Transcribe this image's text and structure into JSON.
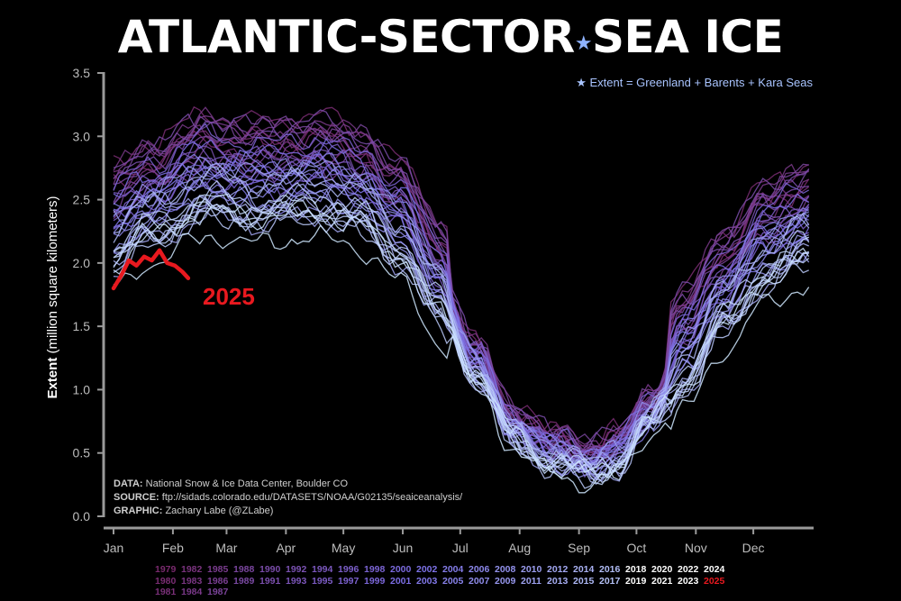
{
  "title": {
    "main_a": "ATLANTIC-SECTOR",
    "star": "★",
    "main_b": "SEA ICE"
  },
  "note": "★ Extent = Greenland + Barents + Kara Seas",
  "credits": [
    {
      "label": "DATA:",
      "text": "National Snow & Ice Data Center, Boulder CO"
    },
    {
      "label": "SOURCE:",
      "text": "ftp://sidads.colorado.edu/DATASETS/NOAA/G02135/seaiceanalysis/"
    },
    {
      "label": "GRAPHIC:",
      "text": "Zachary Labe (@ZLabe)"
    }
  ],
  "colors": {
    "background": "#000000",
    "early": "#7a2a6e",
    "mid": "#7b6fe6",
    "late": "#cfe8ff",
    "highlight": "#e8191f",
    "axis": "#9a9a9a"
  },
  "chart_data": {
    "type": "line",
    "title": "ATLANTIC-SECTOR SEA ICE",
    "ylabel": "Extent (million square kilometers)",
    "ylabel_bold": "Extent",
    "ylabel_rest": "(million square kilometers)",
    "ylim": [
      0,
      3.5
    ],
    "yticks": [
      "0.0",
      "0.5",
      "1.0",
      "1.5",
      "2.0",
      "2.5",
      "3.0",
      "3.5"
    ],
    "xticks": [
      "Jan",
      "Feb",
      "Mar",
      "Apr",
      "May",
      "Jun",
      "Jul",
      "Aug",
      "Sep",
      "Oct",
      "Nov",
      "Dec"
    ],
    "grid": false,
    "highlight": {
      "name": "2025",
      "color": "#e8191f",
      "day_of_year": [
        1,
        5,
        9,
        13,
        17,
        21,
        25,
        29,
        33,
        37,
        40
      ],
      "values": [
        1.8,
        1.9,
        2.02,
        1.98,
        2.05,
        2.02,
        2.1,
        2.0,
        1.98,
        1.93,
        1.88
      ]
    },
    "climatology_note": "Daily extent for each year 1979-2024, colored from purple (early years) to light blue/white (recent years)",
    "legend_years": [
      [
        "1979",
        "1982",
        "1985",
        "1988",
        "1990",
        "1992",
        "1994",
        "1996",
        "1998",
        "2000",
        "2002",
        "2004",
        "2006",
        "2008",
        "2010",
        "2012",
        "2014",
        "2016",
        "2018",
        "2020",
        "2022",
        "2024"
      ],
      [
        "1980",
        "1983",
        "1986",
        "1989",
        "1991",
        "1993",
        "1995",
        "1997",
        "1999",
        "2001",
        "2003",
        "2005",
        "2007",
        "2009",
        "2011",
        "2013",
        "2015",
        "2017",
        "2019",
        "2021",
        "2023",
        "2025"
      ],
      [
        "1981",
        "1984",
        "1987"
      ]
    ]
  }
}
